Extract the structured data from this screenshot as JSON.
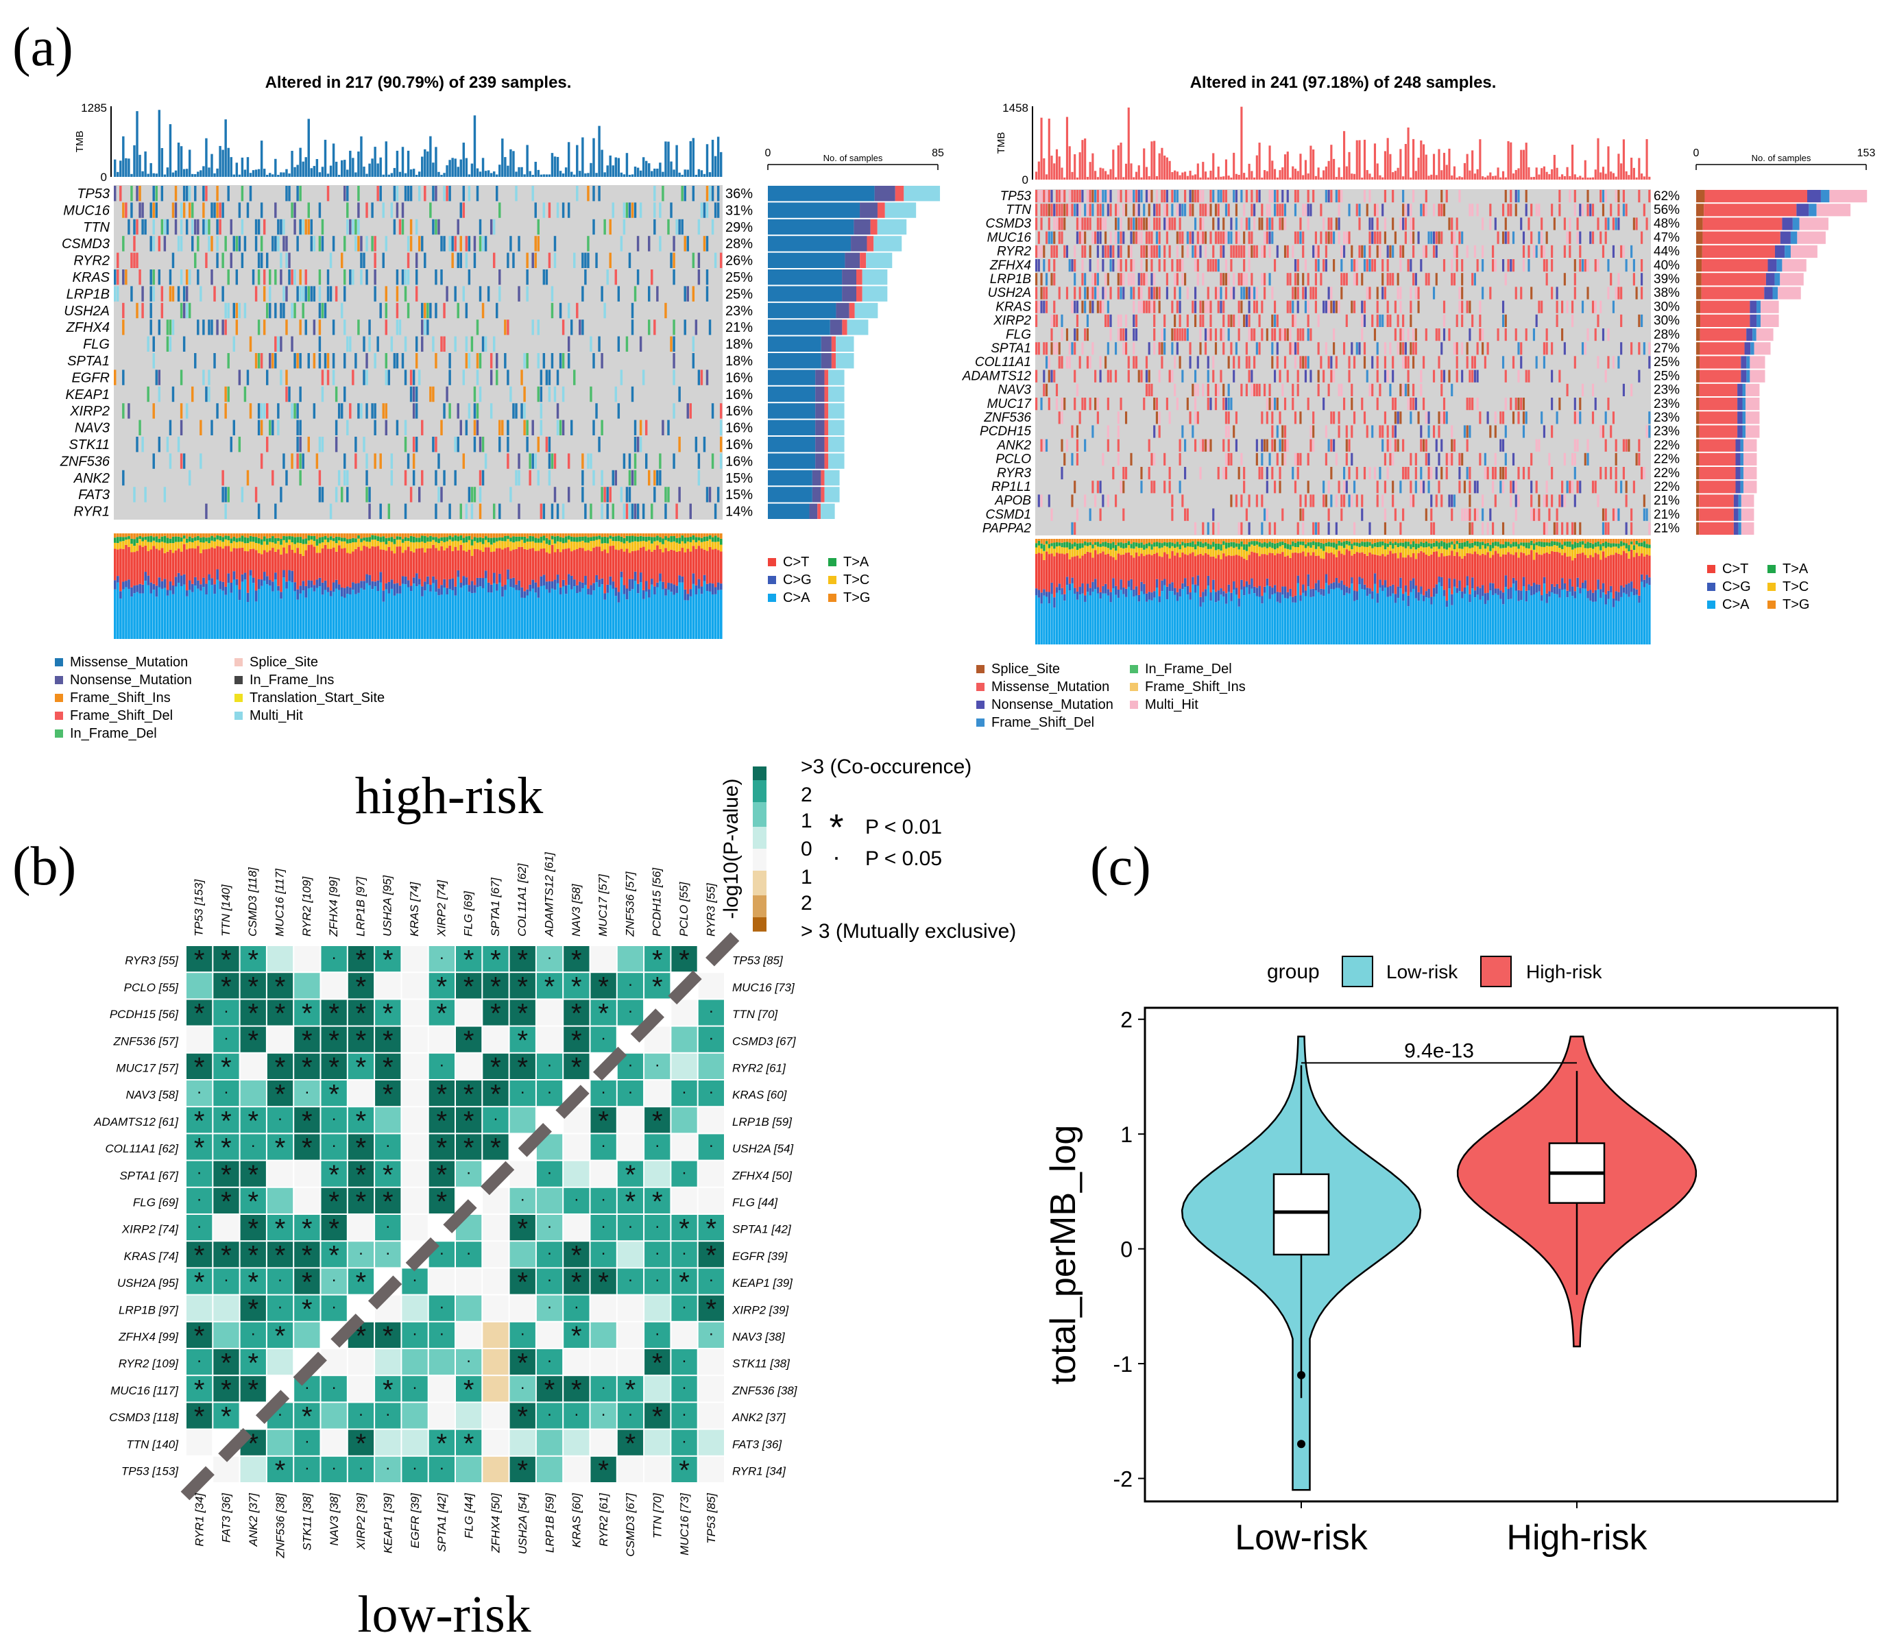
{
  "colors": {
    "missense": "#1f78b4",
    "nonsense": "#5a5a9e",
    "frame_shift_ins": "#f28e1c",
    "frame_shift_del": "#f45a5a",
    "in_frame_del": "#4dbd6c",
    "splice": "#f5c8c0",
    "in_frame_ins": "#444444",
    "translation_start": "#f0e020",
    "multi_hit": "#8dd8e8",
    "high_missense": "#f25c5c",
    "high_splice": "#b35a2b",
    "high_nonsense": "#5050b0",
    "high_fsdel": "#3a8fd0",
    "high_infdel": "#4dbd6c",
    "high_fsins": "#f5c86a",
    "high_multi": "#f7b6c8",
    "snv_CT": "#f0433a",
    "snv_CG": "#3b5bb8",
    "snv_CA": "#11a6ec",
    "snv_TA": "#1fa64a",
    "snv_TC": "#f6c018",
    "snv_TG": "#f08c1c",
    "co_occur": "#0e6e5c",
    "excl": "#b2650f",
    "low_violin": "#7bd3dc",
    "high_violin": "#f26060",
    "grey_bg": "#d3d3d3"
  },
  "panel_labels": {
    "a": "(a)",
    "b": "(b)",
    "c": "(c)"
  },
  "chart_data": [
    {
      "type": "table",
      "name": "oncoplot-low-risk",
      "title": "Altered in 217 (90.79%) of 239 samples.",
      "tmb_axis_label": "TMB",
      "tmb_range": [
        0,
        1285
      ],
      "tmb_ticks": [
        "1285",
        "0"
      ],
      "bar_axis_label": "No. of samples",
      "bar_range": [
        0,
        85
      ],
      "bar_ticks": [
        "0",
        "85"
      ],
      "genes": [
        "TP53",
        "MUC16",
        "TTN",
        "CSMD3",
        "RYR2",
        "KRAS",
        "LRP1B",
        "USH2A",
        "ZFHX4",
        "FLG",
        "SPTA1",
        "EGFR",
        "KEAP1",
        "XIRP2",
        "NAV3",
        "STK11",
        "ZNF536",
        "ANK2",
        "FAT3",
        "RYR1"
      ],
      "percent_labels": [
        "36%",
        "31%",
        "29%",
        "28%",
        "26%",
        "25%",
        "25%",
        "23%",
        "21%",
        "18%",
        "18%",
        "16%",
        "16%",
        "16%",
        "16%",
        "16%",
        "16%",
        "15%",
        "15%",
        "14%"
      ],
      "percents": [
        36,
        31,
        29,
        28,
        26,
        25,
        25,
        23,
        21,
        18,
        18,
        16,
        16,
        16,
        16,
        16,
        16,
        15,
        15,
        14
      ],
      "variant_legend": [
        "Missense_Mutation",
        "Nonsense_Mutation",
        "Frame_Shift_Ins",
        "Frame_Shift_Del",
        "In_Frame_Del",
        "Splice_Site",
        "In_Frame_Ins",
        "Translation_Start_Site",
        "Multi_Hit"
      ],
      "snv_legend": [
        "C>T",
        "C>G",
        "C>A",
        "T>A",
        "T>C",
        "T>G"
      ]
    },
    {
      "type": "table",
      "name": "oncoplot-high-risk",
      "title": "Altered in 241 (97.18%) of 248 samples.",
      "tmb_axis_label": "TMB",
      "tmb_range": [
        0,
        1458
      ],
      "tmb_ticks": [
        "1458",
        "0"
      ],
      "bar_axis_label": "No. of samples",
      "bar_range": [
        0,
        153
      ],
      "bar_ticks": [
        "0",
        "153"
      ],
      "genes": [
        "TP53",
        "TTN",
        "CSMD3",
        "MUC16",
        "RYR2",
        "ZFHX4",
        "LRP1B",
        "USH2A",
        "KRAS",
        "XIRP2",
        "FLG",
        "SPTA1",
        "COL11A1",
        "ADAMTS12",
        "NAV3",
        "MUC17",
        "ZNF536",
        "PCDH15",
        "ANK2",
        "PCLO",
        "RYR3",
        "RP1L1",
        "APOB",
        "CSMD1",
        "PAPPA2"
      ],
      "percent_labels": [
        "62%",
        "56%",
        "48%",
        "47%",
        "44%",
        "40%",
        "39%",
        "38%",
        "30%",
        "30%",
        "28%",
        "27%",
        "25%",
        "25%",
        "23%",
        "23%",
        "23%",
        "23%",
        "22%",
        "22%",
        "22%",
        "22%",
        "21%",
        "21%",
        "21%"
      ],
      "percents": [
        62,
        56,
        48,
        47,
        44,
        40,
        39,
        38,
        30,
        30,
        28,
        27,
        25,
        25,
        23,
        23,
        23,
        23,
        22,
        22,
        22,
        22,
        21,
        21,
        21
      ],
      "variant_legend": [
        "Splice_Site",
        "Missense_Mutation",
        "Nonsense_Mutation",
        "Frame_Shift_Del",
        "In_Frame_Del",
        "Frame_Shift_Ins",
        "Multi_Hit"
      ],
      "snv_legend": [
        "C>T",
        "C>G",
        "C>A",
        "T>A",
        "T>C",
        "T>G"
      ]
    },
    {
      "type": "heatmap",
      "name": "somatic-interactions",
      "title_top": "high-risk",
      "title_bottom": "low-risk",
      "high_genes": [
        "TP53 [153]",
        "TTN [140]",
        "CSMD3 [118]",
        "MUC16 [117]",
        "RYR2 [109]",
        "ZFHX4 [99]",
        "LRP1B [97]",
        "USH2A [95]",
        "KRAS [74]",
        "XIRP2 [74]",
        "FLG [69]",
        "SPTA1 [67]",
        "COL11A1 [62]",
        "ADAMTS12 [61]",
        "NAV3 [58]",
        "MUC17 [57]",
        "ZNF536 [57]",
        "PCDH15 [56]",
        "PCLO [55]",
        "RYR3 [55]"
      ],
      "low_genes": [
        "TP53 [85]",
        "MUC16 [73]",
        "TTN [70]",
        "CSMD3 [67]",
        "RYR2 [61]",
        "KRAS [60]",
        "LRP1B [59]",
        "USH2A [54]",
        "ZFHX4 [50]",
        "FLG [44]",
        "SPTA1 [42]",
        "EGFR [39]",
        "KEAP1 [39]",
        "XIRP2 [39]",
        "NAV3 [38]",
        "STK11 [38]",
        "ZNF536 [38]",
        "ANK2 [37]",
        "FAT3 [36]",
        "RYR1 [34]"
      ],
      "legend_title": "-log10(P-value)",
      "legend_ticks": [
        ">3 (Co-occurence)",
        "2",
        "1",
        "0",
        "1",
        "2",
        "> 3 (Mutually exclusive)"
      ],
      "sig_legend": [
        {
          "symbol": "*",
          "label": "P < 0.01"
        },
        {
          "symbol": "·",
          "label": "P < 0.05"
        }
      ]
    },
    {
      "type": "violin",
      "name": "tmb-violin",
      "ylabel": "total_perMB_log",
      "categories": [
        "Low-risk",
        "High-risk"
      ],
      "legend_title": "group",
      "ylim": [
        -2.2,
        2.1
      ],
      "yticks": [
        "2",
        "1",
        "0",
        "-1",
        "-2"
      ],
      "yticks_values": [
        2,
        1,
        0,
        -1,
        -2
      ],
      "pvalue": "9.4e-13",
      "low": {
        "min": -1.3,
        "q1": -0.05,
        "median": 0.32,
        "q3": 0.65,
        "max": 1.6,
        "outliers": [
          -1.1,
          -1.7
        ],
        "vmin": -2.1,
        "vmax": 1.85
      },
      "high": {
        "min": -0.4,
        "q1": 0.4,
        "median": 0.66,
        "q3": 0.92,
        "max": 1.55,
        "outliers": [],
        "vmin": -0.85,
        "vmax": 1.85
      }
    }
  ]
}
